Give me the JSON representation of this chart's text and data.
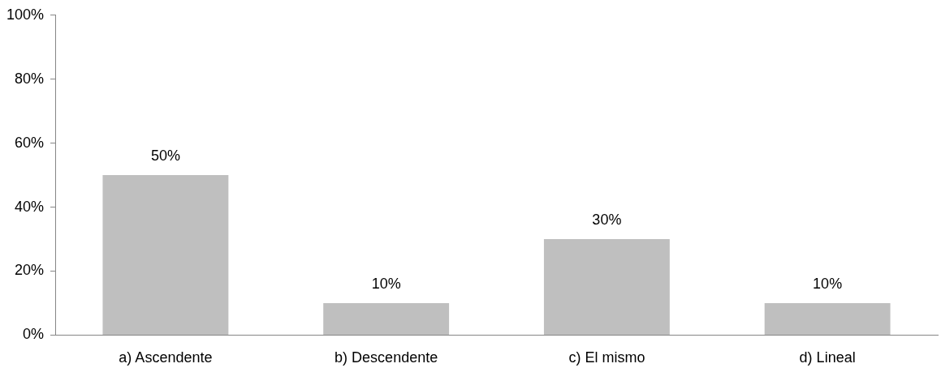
{
  "chart_data": {
    "type": "bar",
    "categories": [
      "a) Ascendente",
      "b) Descendente",
      "c) El mismo",
      "d) Lineal"
    ],
    "values": [
      50,
      10,
      30,
      10
    ],
    "value_labels": [
      "50%",
      "10%",
      "30%",
      "10%"
    ],
    "color": "#bfbfbf",
    "ylim": [
      0,
      100
    ],
    "yticks": [
      {
        "value": 0,
        "label": "0%"
      },
      {
        "value": 20,
        "label": "20%"
      },
      {
        "value": 40,
        "label": "40%"
      },
      {
        "value": 60,
        "label": "60%"
      },
      {
        "value": 80,
        "label": "80%"
      },
      {
        "value": 100,
        "label": "100%"
      }
    ],
    "legend": false,
    "grid": false
  }
}
